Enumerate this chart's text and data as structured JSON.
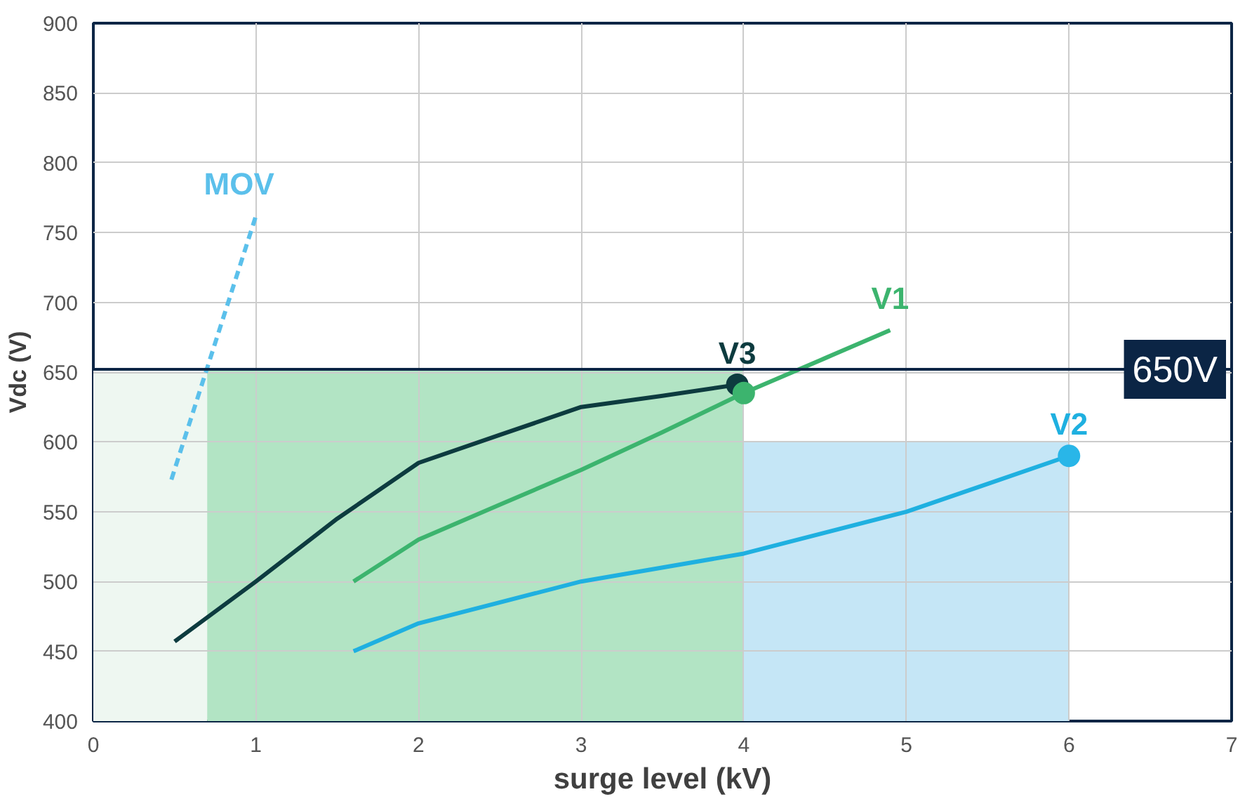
{
  "chart_data": {
    "type": "line",
    "xlabel": "surge level (kV)",
    "ylabel": "Vdc (V)",
    "xlim": [
      0,
      7
    ],
    "xticks": [
      0,
      1,
      2,
      3,
      4,
      5,
      6,
      7
    ],
    "ylim": [
      400,
      900
    ],
    "yticks": [
      400,
      450,
      500,
      550,
      600,
      650,
      700,
      750,
      800,
      850,
      900
    ],
    "grid": true,
    "marker": "none",
    "series": [
      {
        "name": "MOV",
        "color": "#5bc0eb",
        "line_style": "dashed",
        "x": [
          0.48,
          1.0
        ],
        "values": [
          573,
          762
        ]
      },
      {
        "name": "V3",
        "color": "#0d3b3f",
        "x": [
          0.5,
          1,
          1.5,
          2,
          2.5,
          3,
          3.5,
          3.96
        ],
        "values": [
          457,
          500,
          545,
          585,
          605,
          625,
          633,
          641
        ]
      },
      {
        "name": "V1",
        "color": "#3cb46e",
        "x": [
          1.6,
          2,
          2.5,
          3,
          3.5,
          4,
          4.5,
          4.9
        ],
        "values": [
          500,
          530,
          555,
          580,
          607,
          635,
          660,
          680
        ]
      },
      {
        "name": "V2",
        "color": "#1fb0e0",
        "x": [
          1.6,
          2,
          3,
          4,
          5,
          5.5,
          6
        ],
        "values": [
          450,
          470,
          500,
          520,
          550,
          570,
          590
        ]
      },
      {
        "type": "scatter",
        "marker": "circle",
        "x": [
          3.96,
          4,
          6
        ],
        "values": [
          641,
          635,
          590
        ],
        "colors": [
          "#0d3b3f",
          "#3cb46e",
          "#29b6e8"
        ]
      }
    ],
    "ref_lines": [
      {
        "axis": "y",
        "value": 652,
        "label": "650V",
        "color": "#0b2545"
      }
    ],
    "bands": [
      {
        "axis": "x",
        "from": 0,
        "to": 0.7,
        "color": "#eef7f1"
      },
      {
        "axis": "x",
        "from": 0.7,
        "to": 4,
        "color": "#b2e4c4"
      },
      {
        "axis": "x",
        "from": 4,
        "to": 6,
        "color": "#c5e6f6"
      }
    ]
  }
}
